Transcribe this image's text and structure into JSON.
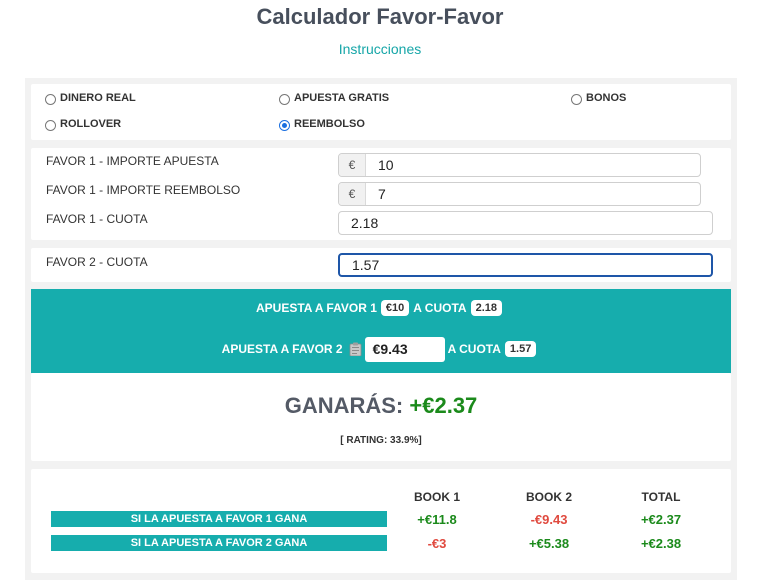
{
  "page": {
    "title": "Calculador Favor-Favor",
    "instructions_link": "Instrucciones"
  },
  "bet_type": {
    "options": [
      {
        "label": "DINERO REAL",
        "checked": false
      },
      {
        "label": "APUESTA GRATIS",
        "checked": false
      },
      {
        "label": "BONOS",
        "checked": false
      },
      {
        "label": "ROLLOVER",
        "checked": false
      },
      {
        "label": "REEMBOLSO",
        "checked": true
      }
    ]
  },
  "favor1": {
    "importe_label": "FAVOR 1 - IMPORTE APUESTA",
    "importe_value": "10",
    "reembolso_label": "FAVOR 1 - IMPORTE REEMBOLSO",
    "reembolso_value": "7",
    "cuota_label": "FAVOR 1 - CUOTA",
    "cuota_value": "2.18",
    "currency": "€"
  },
  "favor2": {
    "cuota_label": "FAVOR 2 - CUOTA",
    "cuota_value": "1.57"
  },
  "summary": {
    "row1_prefix": "APUESTA A FAVOR 1",
    "row1_stake": "€10",
    "row1_mid": "A CUOTA",
    "row1_odds": "2.18",
    "row2_prefix": "APUESTA A FAVOR 2",
    "row2_stake": "€9.43",
    "row2_mid": "A CUOTA",
    "row2_odds": "1.57"
  },
  "result": {
    "label": "GANARÁS:",
    "amount": "+€2.37",
    "rating": "[ RATING: 33.9%]"
  },
  "table": {
    "headers": [
      "BOOK 1",
      "BOOK 2",
      "TOTAL"
    ],
    "rows": [
      {
        "label": "SI LA APUESTA A FAVOR 1 GANA",
        "book1": "+€11.8",
        "book2": "-€9.43",
        "total": "+€2.37"
      },
      {
        "label": "SI LA APUESTA A FAVOR 2 GANA",
        "book1": "-€3",
        "book2": "+€5.38",
        "total": "+€2.38"
      }
    ]
  },
  "colors": {
    "accent": "#16adad",
    "positive": "#1b8a1b",
    "negative": "#e04a3f"
  }
}
